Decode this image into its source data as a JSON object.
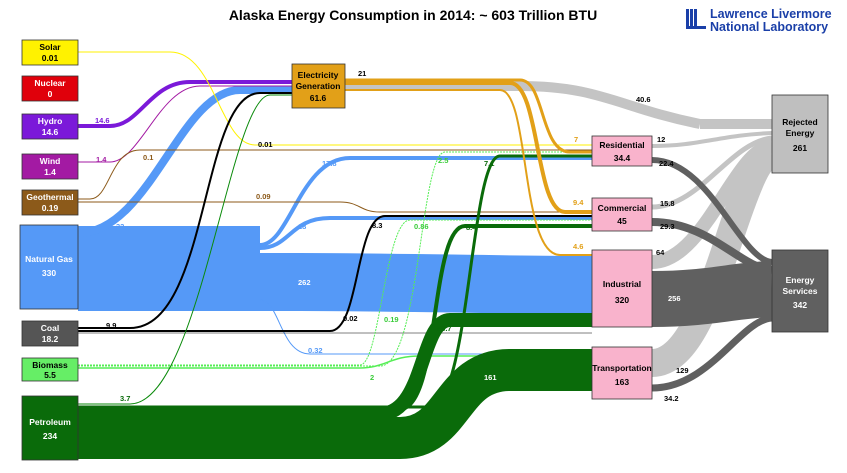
{
  "title": "Alaska Energy Consumption in 2014: ~ 603 Trillion BTU",
  "logo": {
    "line1": "Lawrence Livermore",
    "line2": "National Laboratory"
  },
  "colors": {
    "solar": "#fff200",
    "nuclear": "#e0000b",
    "hydro": "#7b19d9",
    "wind": "#a31aa3",
    "geothermal": "#8c5a1a",
    "natural_gas": "#5599f7",
    "coal": "#000000",
    "biomass": "#66ee66",
    "petroleum": "#0a6b0a",
    "electricity": "#e2a018",
    "rejected": "#bfbfbf",
    "services": "#5a5a5a",
    "sector": "#f9b3cc"
  },
  "sources": {
    "solar": {
      "name": "Solar",
      "value": "0.01"
    },
    "nuclear": {
      "name": "Nuclear",
      "value": "0"
    },
    "hydro": {
      "name": "Hydro",
      "value": "14.6"
    },
    "wind": {
      "name": "Wind",
      "value": "1.4"
    },
    "geothermal": {
      "name": "Geothermal",
      "value": "0.19"
    },
    "natural_gas": {
      "name": "Natural Gas",
      "value": "330"
    },
    "coal": {
      "name": "Coal",
      "value": "18.2"
    },
    "biomass": {
      "name": "Biomass",
      "value": "5.5"
    },
    "petroleum": {
      "name": "Petroleum",
      "value": "234"
    }
  },
  "electricity": {
    "name_1": "Electricity",
    "name_2": "Generation",
    "value": "61.6"
  },
  "sectors": {
    "residential": {
      "name": "Residential",
      "value": "34.4"
    },
    "commercial": {
      "name": "Commercial",
      "value": "45"
    },
    "industrial": {
      "name": "Industrial",
      "value": "320"
    },
    "transportation": {
      "name": "Transportation",
      "value": "163"
    }
  },
  "outcomes": {
    "rejected": {
      "name_1": "Rejected",
      "name_2": "Energy",
      "value": "261"
    },
    "services": {
      "name_1": "Energy",
      "name_2": "Services",
      "value": "342"
    }
  },
  "flow_labels": {
    "hydro_elec": "14.6",
    "wind_elec": "1.4",
    "geo_res": "0.1",
    "geo_com": "0.09",
    "solar_res": "0.01",
    "gas_elec": "32",
    "gas_res": "17.8",
    "gas_com": "18",
    "gas_ind": "262",
    "gas_trans": "0.32",
    "coal_elec": "9.9",
    "coal_com": "8.3",
    "coal_ind": "0.02",
    "bio_res": "2.5",
    "bio_com": "0.86",
    "bio_ind": "0.19",
    "bio_trans": "2",
    "pet_elec": "3.7",
    "pet_res": "7.1",
    "pet_com": "8.4",
    "pet_ind": "53.7",
    "pet_trans": "161",
    "elec_rej": "40.6",
    "elec_21": "21",
    "elec_res": "7",
    "elec_com": "9.4",
    "elec_ind": "4.6",
    "res_rej": "12",
    "res_srv": "22.4",
    "com_rej": "15.8",
    "com_srv": "29.3",
    "ind_rej": "64",
    "ind_srv": "256",
    "trans_rej": "129",
    "trans_srv": "34.2"
  }
}
